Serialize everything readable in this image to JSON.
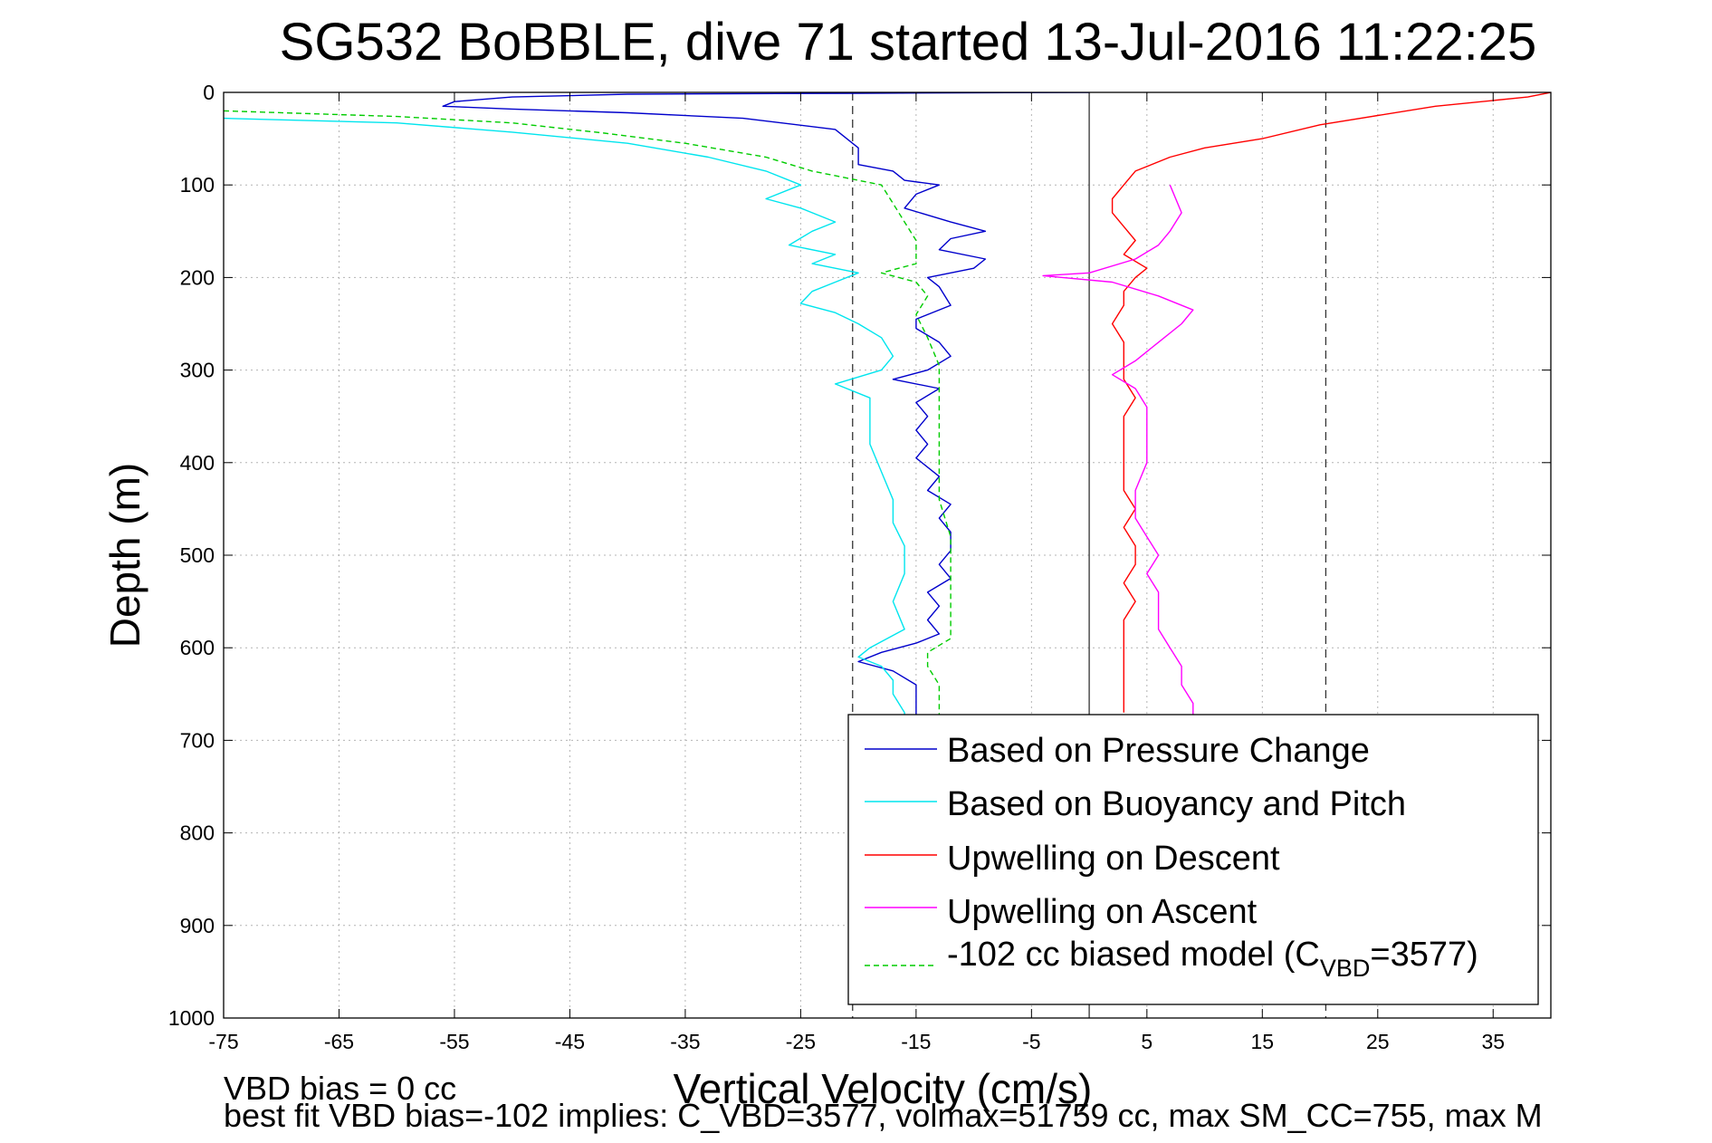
{
  "chart_data": {
    "type": "line",
    "title": "SG532 BoBBLE, dive 71 started 13-Jul-2016 11:22:25",
    "xlabel": "Vertical Velocity (cm/s)",
    "ylabel": "Depth (m)",
    "xlim": [
      -75,
      40
    ],
    "ylim": [
      0,
      1000
    ],
    "y_reversed": true,
    "grid": true,
    "x_ticks": [
      -75,
      -65,
      -55,
      -45,
      -35,
      -25,
      -15,
      -5,
      5,
      15,
      25,
      35
    ],
    "y_ticks": [
      0,
      100,
      200,
      300,
      400,
      500,
      600,
      700,
      800,
      900,
      1000
    ],
    "reference_lines": [
      {
        "x": -20.5,
        "style": "dashed",
        "color": "#333333"
      },
      {
        "x": 0,
        "style": "solid",
        "color": "#333333"
      },
      {
        "x": 20.5,
        "style": "dashed",
        "color": "#333333"
      }
    ],
    "legend_position": "bottom-right",
    "footnotes": [
      "VBD bias = 0 cc",
      "best fit VBD bias=-102 implies: C_VBD=3577, volmax=51759 cc, max SM_CC=755, max M"
    ],
    "series": [
      {
        "name": "Based on Pressure Change",
        "color": "#0000cc",
        "style": "solid",
        "points": [
          [
            0,
            0
          ],
          [
            -20,
            1
          ],
          [
            -40,
            2
          ],
          [
            -50,
            5
          ],
          [
            -55,
            10
          ],
          [
            -56,
            15
          ],
          [
            -50,
            18
          ],
          [
            -40,
            22
          ],
          [
            -30,
            28
          ],
          [
            -22,
            40
          ],
          [
            -20,
            60
          ],
          [
            -20,
            78
          ],
          [
            -17,
            85
          ],
          [
            -16,
            95
          ],
          [
            -13,
            100
          ],
          [
            -15,
            110
          ],
          [
            -16,
            125
          ],
          [
            -12,
            140
          ],
          [
            -9,
            150
          ],
          [
            -12,
            158
          ],
          [
            -13,
            170
          ],
          [
            -9,
            180
          ],
          [
            -10,
            190
          ],
          [
            -14,
            200
          ],
          [
            -13,
            210
          ],
          [
            -12,
            230
          ],
          [
            -15,
            245
          ],
          [
            -15,
            255
          ],
          [
            -13,
            270
          ],
          [
            -12,
            285
          ],
          [
            -14,
            300
          ],
          [
            -17,
            310
          ],
          [
            -13,
            320
          ],
          [
            -15,
            335
          ],
          [
            -14,
            350
          ],
          [
            -15,
            365
          ],
          [
            -14,
            380
          ],
          [
            -15,
            395
          ],
          [
            -13,
            415
          ],
          [
            -14,
            430
          ],
          [
            -12,
            445
          ],
          [
            -13,
            460
          ],
          [
            -12,
            475
          ],
          [
            -12,
            495
          ],
          [
            -13,
            510
          ],
          [
            -12,
            525
          ],
          [
            -14,
            540
          ],
          [
            -13,
            555
          ],
          [
            -14,
            570
          ],
          [
            -13,
            585
          ],
          [
            -15,
            595
          ],
          [
            -18,
            605
          ],
          [
            -20,
            615
          ],
          [
            -17,
            625
          ],
          [
            -15,
            640
          ],
          [
            -15,
            660
          ],
          [
            -15,
            675
          ]
        ]
      },
      {
        "name": "Based on Buoyancy and Pitch",
        "color": "#00e5ee",
        "style": "solid",
        "points": [
          [
            -75,
            28
          ],
          [
            -60,
            33
          ],
          [
            -50,
            43
          ],
          [
            -40,
            55
          ],
          [
            -33,
            70
          ],
          [
            -28,
            85
          ],
          [
            -25,
            100
          ],
          [
            -28,
            115
          ],
          [
            -25,
            125
          ],
          [
            -22,
            140
          ],
          [
            -24,
            150
          ],
          [
            -26,
            165
          ],
          [
            -22,
            175
          ],
          [
            -24,
            185
          ],
          [
            -20,
            195
          ],
          [
            -22,
            205
          ],
          [
            -24,
            215
          ],
          [
            -25,
            228
          ],
          [
            -22,
            238
          ],
          [
            -20,
            250
          ],
          [
            -18,
            265
          ],
          [
            -17,
            285
          ],
          [
            -18,
            300
          ],
          [
            -22,
            315
          ],
          [
            -19,
            330
          ],
          [
            -19,
            350
          ],
          [
            -19,
            380
          ],
          [
            -18,
            410
          ],
          [
            -17,
            440
          ],
          [
            -17,
            465
          ],
          [
            -16,
            490
          ],
          [
            -16,
            520
          ],
          [
            -17,
            550
          ],
          [
            -16,
            580
          ],
          [
            -19,
            600
          ],
          [
            -20,
            610
          ],
          [
            -18,
            620
          ],
          [
            -17,
            635
          ],
          [
            -17,
            650
          ],
          [
            -16,
            670
          ],
          [
            -16,
            675
          ]
        ]
      },
      {
        "name": "Upwelling on Descent",
        "color": "#ff0000",
        "style": "solid",
        "points": [
          [
            40,
            0
          ],
          [
            38,
            5
          ],
          [
            30,
            15
          ],
          [
            25,
            25
          ],
          [
            20,
            35
          ],
          [
            15,
            50
          ],
          [
            10,
            60
          ],
          [
            7,
            70
          ],
          [
            4,
            85
          ],
          [
            3,
            100
          ],
          [
            2,
            115
          ],
          [
            2,
            130
          ],
          [
            3,
            145
          ],
          [
            4,
            160
          ],
          [
            3,
            175
          ],
          [
            5,
            190
          ],
          [
            4,
            200
          ],
          [
            3,
            215
          ],
          [
            3,
            230
          ],
          [
            2,
            250
          ],
          [
            3,
            270
          ],
          [
            3,
            290
          ],
          [
            3,
            310
          ],
          [
            4,
            330
          ],
          [
            3,
            350
          ],
          [
            3,
            370
          ],
          [
            3,
            390
          ],
          [
            3,
            410
          ],
          [
            3,
            430
          ],
          [
            4,
            450
          ],
          [
            3,
            470
          ],
          [
            4,
            490
          ],
          [
            4,
            510
          ],
          [
            3,
            530
          ],
          [
            4,
            550
          ],
          [
            3,
            570
          ],
          [
            3,
            590
          ],
          [
            3,
            610
          ],
          [
            3,
            630
          ],
          [
            3,
            650
          ],
          [
            3,
            670
          ]
        ]
      },
      {
        "name": "Upwelling on Ascent",
        "color": "#ff00ff",
        "style": "solid",
        "points": [
          [
            7,
            100
          ],
          [
            8,
            130
          ],
          [
            7,
            150
          ],
          [
            6,
            165
          ],
          [
            4,
            180
          ],
          [
            0,
            195
          ],
          [
            -4,
            198
          ],
          [
            2,
            205
          ],
          [
            6,
            220
          ],
          [
            9,
            235
          ],
          [
            8,
            250
          ],
          [
            6,
            270
          ],
          [
            4,
            290
          ],
          [
            2,
            305
          ],
          [
            4,
            320
          ],
          [
            5,
            340
          ],
          [
            5,
            370
          ],
          [
            5,
            400
          ],
          [
            4,
            430
          ],
          [
            4,
            460
          ],
          [
            5,
            480
          ],
          [
            6,
            500
          ],
          [
            5,
            520
          ],
          [
            6,
            540
          ],
          [
            6,
            560
          ],
          [
            6,
            580
          ],
          [
            7,
            600
          ],
          [
            8,
            620
          ],
          [
            8,
            640
          ],
          [
            9,
            660
          ],
          [
            9,
            675
          ]
        ]
      },
      {
        "name": "-102 cc biased model (C_VBD=3577)",
        "color": "#00cc00",
        "style": "dashed",
        "points": [
          [
            -75,
            20
          ],
          [
            -60,
            26
          ],
          [
            -50,
            33
          ],
          [
            -42,
            44
          ],
          [
            -35,
            55
          ],
          [
            -28,
            70
          ],
          [
            -24,
            85
          ],
          [
            -18,
            100
          ],
          [
            -17,
            120
          ],
          [
            -16,
            140
          ],
          [
            -15,
            160
          ],
          [
            -15,
            185
          ],
          [
            -18,
            195
          ],
          [
            -15,
            205
          ],
          [
            -14,
            220
          ],
          [
            -15,
            240
          ],
          [
            -14,
            265
          ],
          [
            -13,
            295
          ],
          [
            -13,
            330
          ],
          [
            -13,
            360
          ],
          [
            -13,
            400
          ],
          [
            -13,
            440
          ],
          [
            -12,
            480
          ],
          [
            -12,
            520
          ],
          [
            -12,
            560
          ],
          [
            -12,
            590
          ],
          [
            -14,
            605
          ],
          [
            -14,
            620
          ],
          [
            -13,
            640
          ],
          [
            -13,
            660
          ],
          [
            -13,
            675
          ]
        ]
      }
    ]
  }
}
